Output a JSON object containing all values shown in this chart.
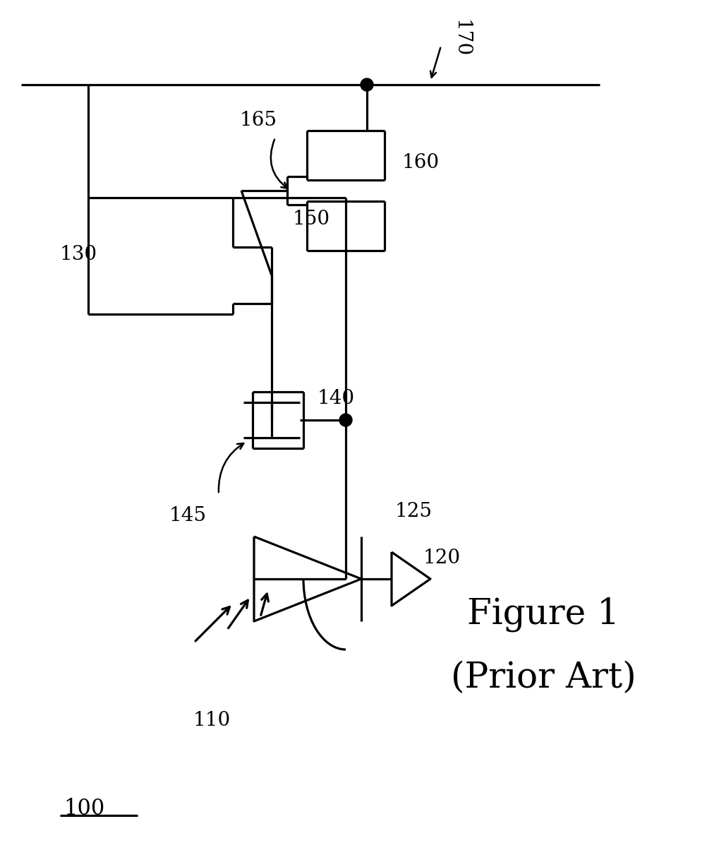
{
  "bg_color": "#ffffff",
  "line_color": "#000000",
  "lw": 2.3,
  "fig_width": 10.02,
  "fig_height": 12.04,
  "label_100": "100",
  "label_110": "110",
  "label_120": "120",
  "label_125": "125",
  "label_130": "130",
  "label_140": "140",
  "label_145": "145",
  "label_150": "150",
  "label_160": "160",
  "label_165": "165",
  "label_170": "170",
  "fig1_text": "Figure 1",
  "prior_art_text": "(Prior Art)"
}
